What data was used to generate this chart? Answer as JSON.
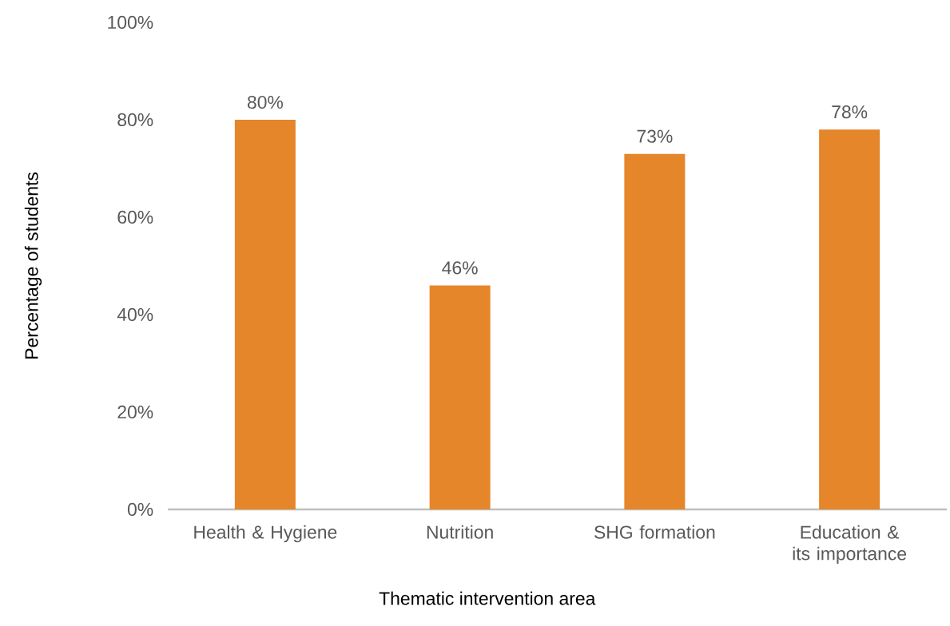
{
  "chart_data": {
    "type": "bar",
    "xlabel": "Thematic intervention area",
    "ylabel": "Percentage of students",
    "categories": [
      "Health & Hygiene",
      "Nutrition",
      "SHG formation",
      "Education & its importance"
    ],
    "values": [
      80,
      46,
      73,
      78
    ],
    "value_labels": [
      "80%",
      "46%",
      "73%",
      "78%"
    ],
    "color": "#e5862a",
    "ylim": [
      0,
      100
    ],
    "yticks": [
      {
        "value": 0,
        "label": "0%"
      },
      {
        "value": 20,
        "label": "20%"
      },
      {
        "value": 40,
        "label": "40%"
      },
      {
        "value": 60,
        "label": "60%"
      },
      {
        "value": 80,
        "label": "80%"
      },
      {
        "value": 100,
        "label": "100%"
      }
    ]
  }
}
